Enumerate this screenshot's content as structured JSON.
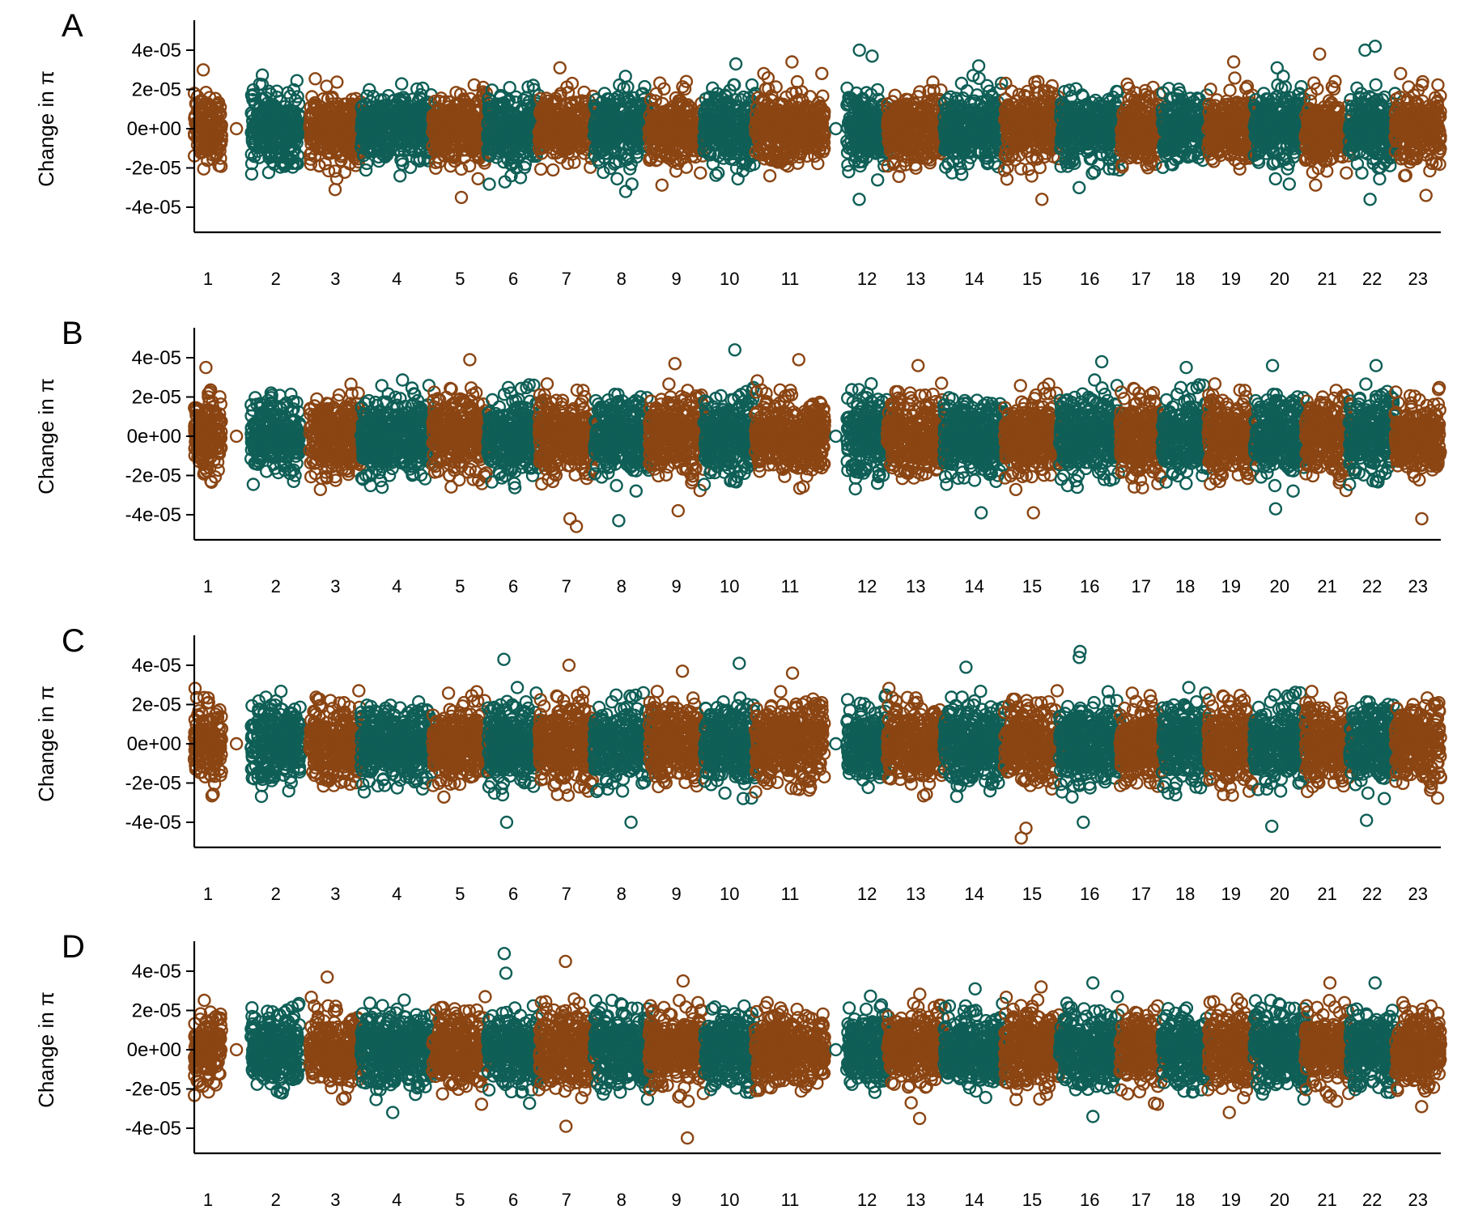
{
  "chart_data": {
    "type": "scatter",
    "layout": "4 stacked panels sharing chromosome x-axis",
    "colors": {
      "odd_chromosomes": "#8B4513",
      "even_chromosomes": "#0F5F57"
    },
    "ylim": [
      -4.5e-05,
      4.5e-05
    ],
    "yticks": [
      -4e-05,
      -2e-05,
      0,
      2e-05,
      4e-05
    ],
    "chromosomes": [
      {
        "label": "1",
        "start": 0,
        "end": 30
      },
      {
        "label": "2",
        "start": 62,
        "end": 116
      },
      {
        "label": "3",
        "start": 126,
        "end": 182
      },
      {
        "label": "4",
        "start": 182,
        "end": 260
      },
      {
        "label": "5",
        "start": 260,
        "end": 320
      },
      {
        "label": "6",
        "start": 320,
        "end": 376
      },
      {
        "label": "7",
        "start": 376,
        "end": 436
      },
      {
        "label": "8",
        "start": 436,
        "end": 496
      },
      {
        "label": "9",
        "start": 496,
        "end": 556
      },
      {
        "label": "10",
        "start": 556,
        "end": 612
      },
      {
        "label": "11",
        "start": 612,
        "end": 688
      },
      {
        "label": "12",
        "start": 712,
        "end": 756
      },
      {
        "label": "13",
        "start": 756,
        "end": 818
      },
      {
        "label": "14",
        "start": 818,
        "end": 884
      },
      {
        "label": "15",
        "start": 884,
        "end": 944
      },
      {
        "label": "16",
        "start": 944,
        "end": 1010
      },
      {
        "label": "17",
        "start": 1010,
        "end": 1056
      },
      {
        "label": "18",
        "start": 1056,
        "end": 1106
      },
      {
        "label": "19",
        "start": 1106,
        "end": 1156
      },
      {
        "label": "20",
        "start": 1156,
        "end": 1212
      },
      {
        "label": "21",
        "start": 1212,
        "end": 1260
      },
      {
        "label": "22",
        "start": 1260,
        "end": 1310
      },
      {
        "label": "23",
        "start": 1310,
        "end": 1360
      }
    ],
    "panels": [
      {
        "letter": "A",
        "ylabel": "Change in π",
        "noise_sd": 8.5e-06,
        "outliers": [
          {
            "chr": "1",
            "y": 3e-05
          },
          {
            "chr": "3",
            "y": -3.1e-05
          },
          {
            "chr": "5",
            "y": -3.5e-05
          },
          {
            "chr": "7",
            "y": 3.1e-05
          },
          {
            "chr": "8",
            "y": -3.2e-05
          },
          {
            "chr": "10",
            "y": 3.3e-05
          },
          {
            "chr": "11",
            "y": 3.4e-05
          },
          {
            "chr": "12",
            "y": 4e-05
          },
          {
            "chr": "12",
            "y": 3.7e-05
          },
          {
            "chr": "12",
            "y": -3.6e-05
          },
          {
            "chr": "14",
            "y": 3.2e-05
          },
          {
            "chr": "15",
            "y": -3.6e-05
          },
          {
            "chr": "16",
            "y": -3e-05
          },
          {
            "chr": "19",
            "y": 3.4e-05
          },
          {
            "chr": "20",
            "y": 3.1e-05
          },
          {
            "chr": "21",
            "y": 3.8e-05
          },
          {
            "chr": "22",
            "y": 4.2e-05
          },
          {
            "chr": "22",
            "y": 4e-05
          },
          {
            "chr": "22",
            "y": -3.6e-05
          },
          {
            "chr": "23",
            "y": -3.4e-05
          }
        ]
      },
      {
        "letter": "B",
        "ylabel": "Change in π",
        "noise_sd": 9.5e-06,
        "outliers": [
          {
            "chr": "1",
            "y": 3.5e-05
          },
          {
            "chr": "5",
            "y": 3.9e-05
          },
          {
            "chr": "7",
            "y": -4.6e-05
          },
          {
            "chr": "7",
            "y": -4.2e-05
          },
          {
            "chr": "8",
            "y": -4.3e-05
          },
          {
            "chr": "9",
            "y": 3.7e-05
          },
          {
            "chr": "9",
            "y": -3.8e-05
          },
          {
            "chr": "10",
            "y": 4.4e-05
          },
          {
            "chr": "11",
            "y": 3.9e-05
          },
          {
            "chr": "13",
            "y": 3.6e-05
          },
          {
            "chr": "14",
            "y": -3.9e-05
          },
          {
            "chr": "15",
            "y": -3.9e-05
          },
          {
            "chr": "16",
            "y": 3.8e-05
          },
          {
            "chr": "18",
            "y": 3.5e-05
          },
          {
            "chr": "20",
            "y": 3.6e-05
          },
          {
            "chr": "20",
            "y": -3.7e-05
          },
          {
            "chr": "22",
            "y": 3.6e-05
          },
          {
            "chr": "23",
            "y": -4.2e-05
          }
        ]
      },
      {
        "letter": "C",
        "ylabel": "Change in π",
        "noise_sd": 9.5e-06,
        "outliers": [
          {
            "chr": "6",
            "y": 4.3e-05
          },
          {
            "chr": "6",
            "y": -4e-05
          },
          {
            "chr": "7",
            "y": 4e-05
          },
          {
            "chr": "8",
            "y": -4e-05
          },
          {
            "chr": "9",
            "y": 3.7e-05
          },
          {
            "chr": "10",
            "y": 4.1e-05
          },
          {
            "chr": "11",
            "y": 3.6e-05
          },
          {
            "chr": "14",
            "y": 3.9e-05
          },
          {
            "chr": "15",
            "y": -4.8e-05
          },
          {
            "chr": "15",
            "y": -4.3e-05
          },
          {
            "chr": "16",
            "y": 4.7e-05
          },
          {
            "chr": "16",
            "y": 4.4e-05
          },
          {
            "chr": "16",
            "y": -4e-05
          },
          {
            "chr": "20",
            "y": -4.2e-05
          },
          {
            "chr": "22",
            "y": -3.9e-05
          }
        ]
      },
      {
        "letter": "D",
        "ylabel": "Change in π",
        "noise_sd": 9e-06,
        "outliers": [
          {
            "chr": "3",
            "y": 3.7e-05
          },
          {
            "chr": "4",
            "y": -3.2e-05
          },
          {
            "chr": "6",
            "y": 4.9e-05
          },
          {
            "chr": "6",
            "y": 3.9e-05
          },
          {
            "chr": "7",
            "y": 4.5e-05
          },
          {
            "chr": "7",
            "y": -3.9e-05
          },
          {
            "chr": "9",
            "y": -4.5e-05
          },
          {
            "chr": "9",
            "y": 3.5e-05
          },
          {
            "chr": "13",
            "y": -3.5e-05
          },
          {
            "chr": "14",
            "y": 3.1e-05
          },
          {
            "chr": "15",
            "y": 3.2e-05
          },
          {
            "chr": "16",
            "y": 3.4e-05
          },
          {
            "chr": "16",
            "y": -3.4e-05
          },
          {
            "chr": "19",
            "y": -3.2e-05
          },
          {
            "chr": "21",
            "y": 3.4e-05
          },
          {
            "chr": "22",
            "y": 3.4e-05
          },
          {
            "chr": "23",
            "y": -2.9e-05
          }
        ]
      }
    ]
  }
}
